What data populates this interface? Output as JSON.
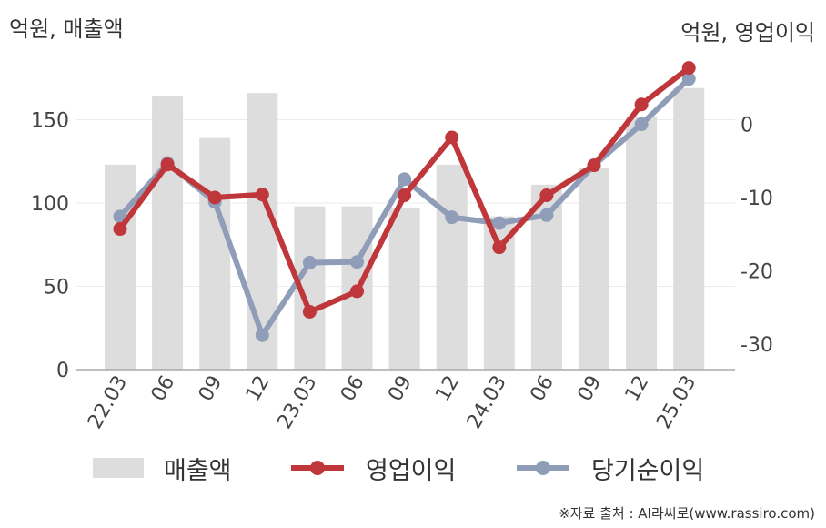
{
  "axis_units": {
    "left": "억원, 매출액",
    "right": "억원, 영업이익"
  },
  "source_note": "※자료 출처 : AI라씨로(www.rassiro.com)",
  "legend": [
    {
      "label": "매출액",
      "kind": "bar",
      "color": "#dddddd"
    },
    {
      "label": "영업이익",
      "kind": "line",
      "color": "#c0373b"
    },
    {
      "label": "당기순이익",
      "kind": "line",
      "color": "#8f9db8"
    }
  ],
  "chart_data": {
    "type": "bar",
    "categories": [
      "22.03",
      "06",
      "09",
      "12",
      "23.03",
      "06",
      "09",
      "12",
      "24.03",
      "06",
      "09",
      "12",
      "25.03"
    ],
    "series": [
      {
        "name": "매출액",
        "type": "bar",
        "axis": "left",
        "color": "#dddddd",
        "values": [
          123,
          164,
          139,
          166,
          98,
          98,
          97,
          123,
          92,
          111,
          121,
          152,
          169
        ]
      },
      {
        "name": "영업이익",
        "type": "line",
        "axis": "right",
        "color": "#c0373b",
        "values": [
          -14.3,
          -5.5,
          -10.0,
          -9.6,
          -25.6,
          -22.8,
          -9.7,
          -1.8,
          -16.8,
          -9.7,
          -5.6,
          2.7,
          7.7
        ]
      },
      {
        "name": "당기순이익",
        "type": "line",
        "axis": "right",
        "color": "#8f9db8",
        "values": [
          -12.6,
          -5.3,
          -10.6,
          -28.8,
          -18.9,
          -18.8,
          -7.5,
          -12.7,
          -13.5,
          -12.4,
          -5.6,
          0.0,
          6.2
        ]
      }
    ],
    "y_left": {
      "lim": [
        0,
        200
      ],
      "ticks": [
        0,
        50,
        100,
        150
      ]
    },
    "y_right": {
      "lim": [
        -33.5,
        12.0
      ],
      "ticks": [
        0,
        -10,
        -20,
        -30
      ]
    },
    "grid": true,
    "legend_position": "bottom"
  }
}
